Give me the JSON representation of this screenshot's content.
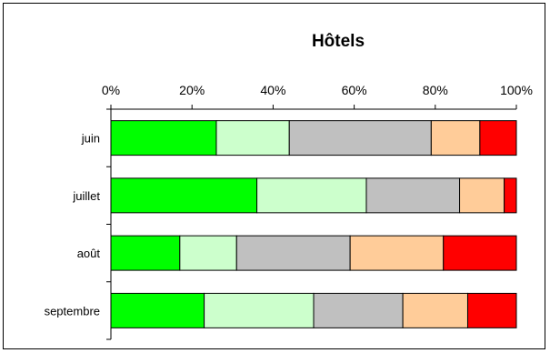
{
  "chart_data": {
    "type": "bar",
    "orientation": "horizontal",
    "stacked": "percent",
    "title": "Hôtels",
    "categories": [
      "juin",
      "juillet",
      "août",
      "septembre"
    ],
    "x_ticks": [
      "0%",
      "20%",
      "40%",
      "60%",
      "80%",
      "100%"
    ],
    "xlim": [
      0,
      100
    ],
    "legend": "none",
    "grid": false,
    "series": [
      {
        "color": "#00ff00",
        "values": [
          26,
          36,
          17,
          23
        ]
      },
      {
        "color": "#ccffcc",
        "values": [
          18,
          27,
          14,
          27
        ]
      },
      {
        "color": "#c0c0c0",
        "values": [
          35,
          23,
          28,
          22
        ]
      },
      {
        "color": "#ffcc99",
        "values": [
          12,
          11,
          23,
          16
        ]
      },
      {
        "color": "#ff0000",
        "values": [
          9,
          3,
          18,
          12
        ]
      }
    ]
  }
}
